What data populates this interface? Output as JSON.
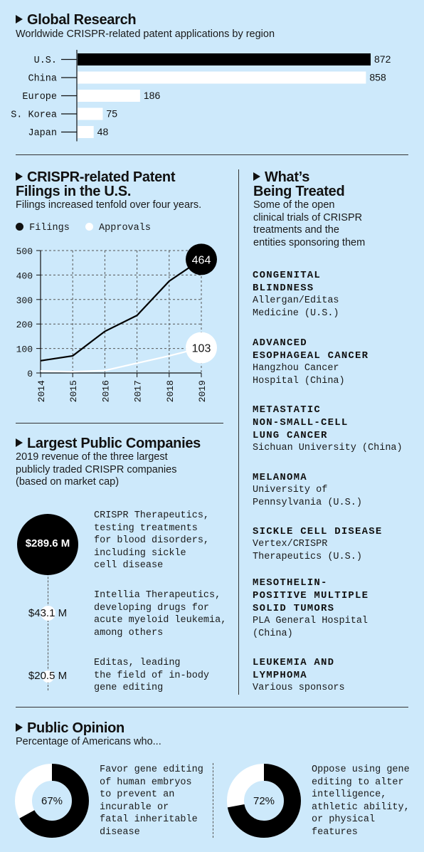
{
  "global": {
    "title": "Global Research",
    "subtitle": "Worldwide CRISPR-related patent applications by region"
  },
  "filings": {
    "title_line1": "CRISPR-related Patent",
    "title_line2": "Filings in the U.S.",
    "subtitle": "Filings increased tenfold over four years.",
    "legend_filings": "Filings",
    "legend_approvals": "Approvals",
    "end_filings": "464",
    "end_approvals": "103"
  },
  "treated": {
    "title_line1": "What’s",
    "title_line2": "Being Treated",
    "subtitle": "Some of the open\nclinical trials of CRISPR\ntreatments and the\nentities sponsoring them",
    "items": [
      {
        "condition": "CONGENITAL\nBLINDNESS",
        "sponsor": "Allergan/Editas\nMedicine (U.S.)"
      },
      {
        "condition": "ADVANCED\nESOPHAGEAL CANCER",
        "sponsor": "Hangzhou Cancer\nHospital (China)"
      },
      {
        "condition": "METASTATIC\nNON-SMALL-CELL\nLUNG CANCER",
        "sponsor": "Sichuan University (China)"
      },
      {
        "condition": "MELANOMA",
        "sponsor": "University of\nPennsylvania (U.S.)"
      },
      {
        "condition": "SICKLE CELL DISEASE",
        "sponsor": "Vertex/CRISPR\nTherapeutics (U.S.)"
      },
      {
        "condition": "MESOTHELIN-\nPOSITIVE MULTIPLE\nSOLID TUMORS",
        "sponsor": "PLA General Hospital\n(China)"
      },
      {
        "condition": "LEUKEMIA AND\nLYMPHOMA",
        "sponsor": "Various sponsors"
      }
    ]
  },
  "companies": {
    "title": "Largest Public Companies",
    "subtitle": "2019 revenue of the three largest\npublicly traded CRISPR companies\n(based on market cap)",
    "items": [
      {
        "revenue": "$289.6 M",
        "value": 289.6,
        "desc": "CRISPR Therapeutics,\ntesting treatments\nfor blood disorders,\nincluding sickle\ncell disease"
      },
      {
        "revenue": "$43.1 M",
        "value": 43.1,
        "desc": "Intellia Therapeutics,\ndeveloping drugs for\nacute myeloid leukemia,\namong others"
      },
      {
        "revenue": "$20.5 M",
        "value": 20.5,
        "desc": "Editas, leading\nthe field of in-body\ngene editing"
      }
    ]
  },
  "opinion": {
    "title": "Public Opinion",
    "subtitle": "Percentage of Americans who...",
    "items": [
      {
        "pct": 67,
        "label": "67%",
        "desc": "Favor gene editing\nof human embryos\nto prevent an\nincurable or\nfatal inheritable\ndisease"
      },
      {
        "pct": 72,
        "label": "72%",
        "desc": "Oppose using gene\nediting to alter\nintelligence,\nathletic ability,\nor physical\nfeatures"
      }
    ]
  },
  "chart_data": [
    {
      "type": "bar",
      "orientation": "horizontal",
      "categories": [
        "U.S.",
        "China",
        "Europe",
        "S. Korea",
        "Japan"
      ],
      "values": [
        872,
        858,
        186,
        75,
        48
      ],
      "title": "Global Research"
    },
    {
      "type": "line",
      "title": "CRISPR-related Patent Filings in the U.S.",
      "x": [
        "2014",
        "2015",
        "2016",
        "2017",
        "2018",
        "2019"
      ],
      "series": [
        {
          "name": "Filings",
          "values": [
            50,
            70,
            170,
            235,
            375,
            464
          ],
          "color": "#000000"
        },
        {
          "name": "Approvals",
          "values": [
            8,
            5,
            10,
            40,
            70,
            103
          ],
          "color": "#ffffff"
        }
      ],
      "ylim": [
        0,
        500
      ],
      "yticks": [
        0,
        100,
        200,
        300,
        400,
        500
      ],
      "grid": true,
      "legend": "top-left"
    }
  ]
}
